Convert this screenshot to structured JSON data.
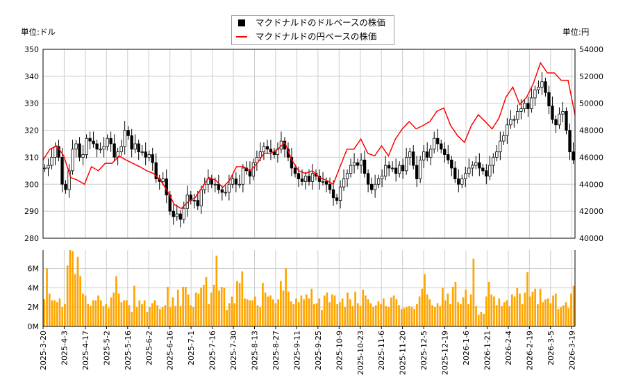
{
  "chart_data": [
    {
      "type": "candlestick+line",
      "ylabel": "単位:ドル",
      "ylabel_right": "単位:円",
      "ylim": [
        280,
        350
      ],
      "ylim_right": [
        40000,
        54000
      ],
      "yticks": [
        280,
        290,
        300,
        310,
        320,
        330,
        340,
        350
      ],
      "yticks_right": [
        40000,
        42000,
        44000,
        46000,
        48000,
        50000,
        52000,
        54000
      ],
      "grid": true,
      "legend_placement": "top-center",
      "series": [
        {
          "name": "マクドナルドのドルベースの株価",
          "color": "#000000",
          "close": [
            306,
            307,
            310,
            314,
            310,
            300,
            298,
            305,
            313,
            315,
            310,
            311,
            317,
            316,
            315,
            313,
            313,
            314,
            317,
            315,
            310,
            312,
            314,
            320,
            318,
            313,
            315,
            312,
            312,
            310,
            311,
            308,
            302,
            301,
            302,
            296,
            290,
            288,
            289,
            287,
            291,
            296,
            294,
            294,
            292,
            298,
            300,
            302,
            300,
            300,
            298,
            297,
            297,
            300,
            302,
            300,
            300,
            306,
            305,
            303,
            308,
            310,
            312,
            314,
            313,
            312,
            311,
            313,
            316,
            313,
            310,
            306,
            304,
            302,
            301,
            303,
            301,
            304,
            303,
            301,
            301,
            300,
            298,
            295,
            294,
            299,
            302,
            304,
            307,
            308,
            307,
            309,
            304,
            300,
            298,
            300,
            302,
            303,
            307,
            306,
            306,
            304,
            307,
            305,
            310,
            312,
            307,
            302,
            309,
            312,
            310,
            313,
            317,
            315,
            313,
            311,
            309,
            306,
            302,
            300,
            302,
            304,
            306,
            307,
            308,
            306,
            305,
            303,
            307,
            310,
            312,
            316,
            318,
            322,
            324,
            324,
            327,
            328,
            330,
            328,
            332,
            335,
            336,
            338,
            334,
            329,
            324,
            322,
            326,
            327,
            320,
            312,
            309
          ]
        },
        {
          "name": "マクドナルドの円ベースの株価",
          "color": "#ff0000",
          "values": [
            45800,
            46600,
            46850,
            46100,
            44500,
            44300,
            44000,
            45300,
            45000,
            45550,
            45550,
            46100,
            45800,
            45550,
            45300,
            45000,
            44800,
            44300,
            43500,
            42500,
            42200,
            42700,
            43000,
            43750,
            44500,
            44300,
            43750,
            44300,
            45300,
            45300,
            45000,
            45550,
            46300,
            46300,
            46600,
            47100,
            45800,
            45000,
            44800,
            45000,
            44500,
            44300,
            44000,
            45300,
            46600,
            46600,
            47350,
            46300,
            46100,
            46850,
            46100,
            47350,
            48100,
            48650,
            48100,
            48350,
            48650,
            49400,
            49650,
            48350,
            47600,
            47100,
            48350,
            49150,
            48650,
            48100,
            48900,
            50450,
            51200,
            49900,
            50450,
            51500,
            53000,
            52250,
            52250,
            51700,
            51700,
            49150
          ]
        }
      ]
    },
    {
      "type": "bar",
      "color": "#ffa500",
      "ylim": [
        0,
        7.9
      ],
      "yticks": [
        "0M",
        "2M",
        "4M",
        "6M"
      ],
      "ytick_values": [
        0,
        2,
        4,
        6
      ],
      "values": [
        2.8,
        6.0,
        3.4,
        2.7,
        2.7,
        2.5,
        2.9,
        2.0,
        2.3,
        6.3,
        7.9,
        7.8,
        5.4,
        7.2,
        5.2,
        3.4,
        3.2,
        2.3,
        2.1,
        2.7,
        2.7,
        3.2,
        2.7,
        2.1,
        2.3,
        1.9,
        3.0,
        3.5,
        5.2,
        3.4,
        2.5,
        2.7,
        2.7,
        2.2,
        1.5,
        4.2,
        2.0,
        2.7,
        2.3,
        2.7,
        1.5,
        2.0,
        2.4,
        2.7,
        2.2,
        1.8,
        2.0,
        2.2,
        4.1,
        2.0,
        3.0,
        2.1,
        3.8,
        2.1,
        4.1,
        4.1,
        3.3,
        2.2,
        2.0,
        3.5,
        3.4,
        4.0,
        4.3,
        5.1,
        2.3,
        3.5,
        4.3,
        7.3,
        3.7,
        4.1,
        4.0,
        1.7,
        2.4,
        3.1,
        2.4,
        4.7,
        4.5,
        5.7,
        2.9,
        2.8,
        2.7,
        2.7,
        3.1,
        2.2,
        2.0,
        4.5,
        3.5,
        3.1,
        3.2,
        2.8,
        2.4,
        2.8,
        4.7,
        3.7,
        6.0,
        3.6,
        2.6,
        2.3,
        2.9,
        2.5,
        3.2,
        2.8,
        3.3,
        2.9,
        3.9,
        2.3,
        2.4,
        2.9,
        1.7,
        3.2,
        3.5,
        2.5,
        3.3,
        3.2,
        2.3,
        2.5,
        2.9,
        2.0,
        3.5,
        2.8,
        2.1,
        3.6,
        2.4,
        2.1,
        3.8,
        3.2,
        2.8,
        2.4,
        2.0,
        2.2,
        2.6,
        2.3,
        2.9,
        2.1,
        2.0,
        3.0,
        3.2,
        2.8,
        2.2,
        1.8,
        1.9,
        2.0,
        2.1,
        2.0,
        1.8,
        2.3,
        3.1,
        3.9,
        5.4,
        3.3,
        2.8,
        2.2,
        2.0,
        2.4,
        2.1,
        4.0,
        2.7,
        3.4,
        2.3,
        4.1,
        4.6,
        2.5,
        2.3,
        3.0,
        3.8,
        2.3,
        3.3,
        7.0,
        2.1,
        1.2,
        1.5,
        1.3,
        3.1,
        4.6,
        3.3,
        3.1,
        2.2,
        2.9,
        2.1,
        2.5,
        2.7,
        2.1,
        3.3,
        3.1,
        4.0,
        3.4,
        2.3,
        3.5,
        5.6,
        3.1,
        3.6,
        3.9,
        2.3,
        3.9,
        2.5,
        2.8,
        2.9,
        2.4,
        3.2,
        3.4,
        1.8,
        2.0,
        2.2,
        2.5,
        1.9,
        3.4,
        4.2
      ]
    },
    {
      "xticks": [
        "2025-3-20",
        "2025-4-3",
        "2025-4-17",
        "2025-5-2",
        "2025-5-16",
        "2025-6-2",
        "2025-6-16",
        "2025-7-1",
        "2025-7-16",
        "2025-7-30",
        "2025-8-13",
        "2025-8-27",
        "2025-9-11",
        "2025-9-25",
        "2025-10-9",
        "2025-10-23",
        "2025-11-6",
        "2025-11-20",
        "2025-12-5",
        "2025-12-19",
        "2026-1-6",
        "2026-1-21",
        "2026-2-4",
        "2026-2-19",
        "2026-3-5",
        "2026-3-19"
      ]
    }
  ]
}
